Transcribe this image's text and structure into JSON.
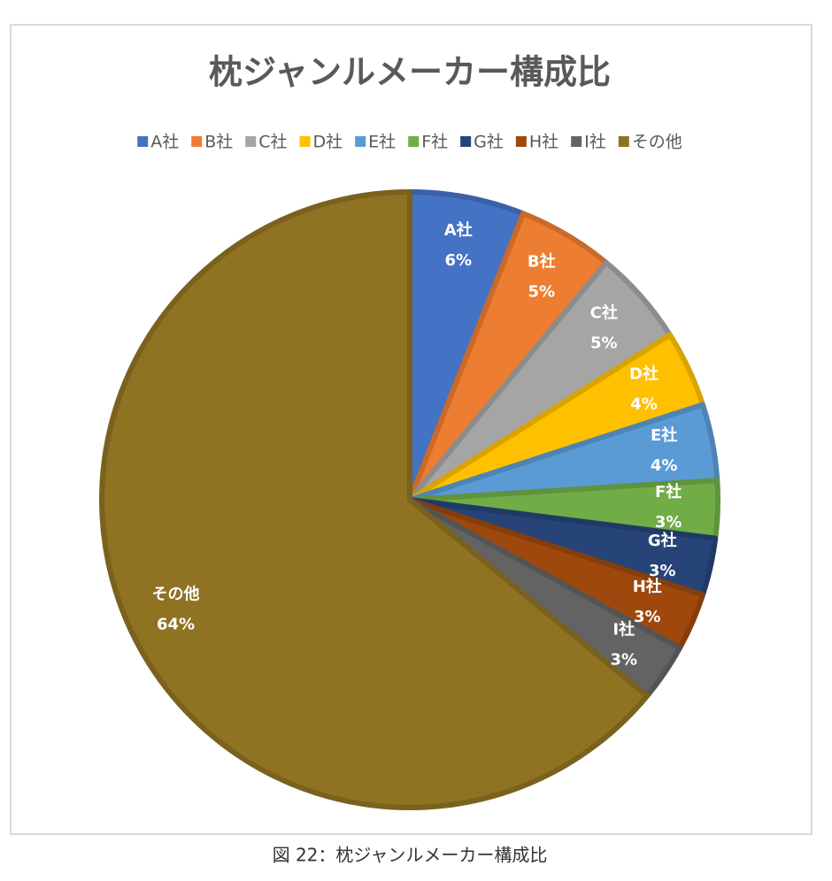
{
  "chart_data": {
    "type": "pie",
    "title": "枕ジャンルメーカー構成比",
    "categories": [
      "A社",
      "B社",
      "C社",
      "D社",
      "E社",
      "F社",
      "G社",
      "H社",
      "I社",
      "その他"
    ],
    "values": [
      6,
      5,
      5,
      4,
      4,
      3,
      3,
      3,
      3,
      64
    ],
    "value_labels": [
      "6%",
      "5%",
      "5%",
      "4%",
      "4%",
      "3%",
      "3%",
      "3%",
      "3%",
      "64%"
    ],
    "colors": [
      "#4472c4",
      "#ed7d31",
      "#a5a5a5",
      "#ffc000",
      "#5b9bd5",
      "#70ad47",
      "#264478",
      "#9e480e",
      "#636363",
      "#8f7222"
    ],
    "legend": "top"
  },
  "caption": "図 22：枕ジャンルメーカー構成比"
}
